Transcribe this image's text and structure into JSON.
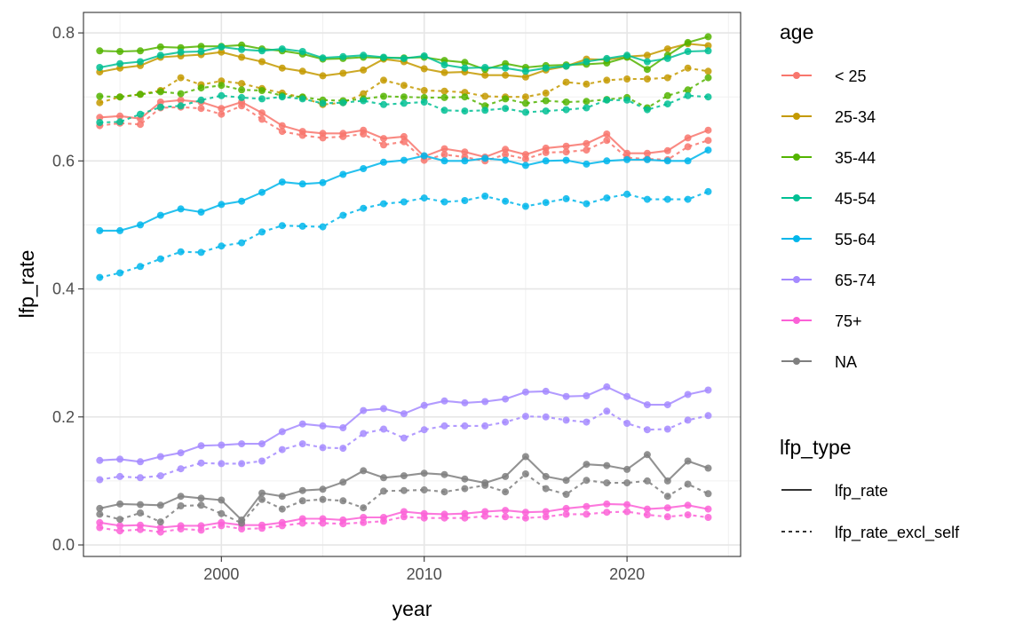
{
  "chart_data": {
    "type": "line",
    "xlabel": "year",
    "ylabel": "lfp_rate",
    "xlim": [
      1993.2,
      2025.6
    ],
    "ylim": [
      -0.018,
      0.832
    ],
    "x_ticks": [
      2000,
      2010,
      2020
    ],
    "x_tick_labels": [
      "2000",
      "2010",
      "2020"
    ],
    "y_ticks": [
      0.0,
      0.2,
      0.4,
      0.6,
      0.8
    ],
    "y_tick_labels": [
      "0.0",
      "0.2",
      "0.4",
      "0.6",
      "0.8"
    ],
    "grid": true,
    "legend_age": {
      "title": "age",
      "position": "right",
      "entries": [
        {
          "label": "< 25",
          "color": "#F8766D"
        },
        {
          "label": "25-34",
          "color": "#C49A00"
        },
        {
          "label": "35-44",
          "color": "#53B400"
        },
        {
          "label": "45-54",
          "color": "#00C094"
        },
        {
          "label": "55-64",
          "color": "#00B6EB"
        },
        {
          "label": "65-74",
          "color": "#A58AFF"
        },
        {
          "label": "75+",
          "color": "#FB61D7"
        },
        {
          "label": "NA",
          "color": "#7F7F7F"
        }
      ]
    },
    "legend_type": {
      "title": "lfp_type",
      "position": "right",
      "entries": [
        {
          "label": "lfp_rate",
          "linetype": "solid"
        },
        {
          "label": "lfp_rate_excl_self",
          "linetype": "dashed"
        }
      ]
    },
    "x": [
      1994,
      1995,
      1996,
      1997,
      1998,
      1999,
      2000,
      2001,
      2002,
      2003,
      2004,
      2005,
      2006,
      2007,
      2008,
      2009,
      2010,
      2011,
      2012,
      2013,
      2014,
      2015,
      2016,
      2017,
      2018,
      2019,
      2020,
      2021,
      2022,
      2023,
      2024
    ],
    "series": [
      {
        "name": "< 25",
        "lfp_type": "lfp_rate",
        "color": "#F8766D",
        "values": [
          0.668,
          0.67,
          0.666,
          0.692,
          0.695,
          0.692,
          0.682,
          0.692,
          0.675,
          0.655,
          0.646,
          0.643,
          0.643,
          0.648,
          0.635,
          0.638,
          0.607,
          0.619,
          0.614,
          0.606,
          0.618,
          0.61,
          0.62,
          0.623,
          0.627,
          0.642,
          0.612,
          0.612,
          0.616,
          0.636,
          0.648
        ]
      },
      {
        "name": "< 25",
        "lfp_type": "lfp_rate_excl_self",
        "color": "#F8766D",
        "values": [
          0.655,
          0.659,
          0.657,
          0.683,
          0.684,
          0.682,
          0.673,
          0.686,
          0.665,
          0.646,
          0.64,
          0.636,
          0.638,
          0.642,
          0.625,
          0.63,
          0.601,
          0.61,
          0.606,
          0.6,
          0.61,
          0.603,
          0.613,
          0.614,
          0.617,
          0.632,
          0.605,
          0.603,
          0.602,
          0.622,
          0.632
        ]
      },
      {
        "name": "25-34",
        "lfp_type": "lfp_rate",
        "color": "#C49A00",
        "values": [
          0.739,
          0.745,
          0.749,
          0.762,
          0.764,
          0.766,
          0.77,
          0.762,
          0.755,
          0.745,
          0.74,
          0.733,
          0.737,
          0.742,
          0.759,
          0.755,
          0.744,
          0.738,
          0.739,
          0.734,
          0.734,
          0.731,
          0.742,
          0.748,
          0.759,
          0.758,
          0.763,
          0.765,
          0.775,
          0.783,
          0.78
        ]
      },
      {
        "name": "25-34",
        "lfp_type": "lfp_rate_excl_self",
        "color": "#C49A00",
        "values": [
          0.691,
          0.7,
          0.704,
          0.71,
          0.73,
          0.719,
          0.725,
          0.721,
          0.713,
          0.706,
          0.699,
          0.688,
          0.691,
          0.705,
          0.726,
          0.718,
          0.71,
          0.709,
          0.707,
          0.701,
          0.7,
          0.7,
          0.706,
          0.723,
          0.72,
          0.726,
          0.728,
          0.728,
          0.73,
          0.745,
          0.74
        ]
      },
      {
        "name": "35-44",
        "lfp_type": "lfp_rate",
        "color": "#53B400",
        "values": [
          0.772,
          0.771,
          0.772,
          0.778,
          0.777,
          0.779,
          0.779,
          0.781,
          0.775,
          0.772,
          0.767,
          0.759,
          0.76,
          0.762,
          0.761,
          0.761,
          0.762,
          0.757,
          0.754,
          0.743,
          0.752,
          0.746,
          0.749,
          0.75,
          0.751,
          0.753,
          0.762,
          0.743,
          0.765,
          0.785,
          0.794
        ]
      },
      {
        "name": "35-44",
        "lfp_type": "lfp_rate_excl_self",
        "color": "#53B400",
        "values": [
          0.701,
          0.7,
          0.704,
          0.708,
          0.705,
          0.714,
          0.718,
          0.711,
          0.71,
          0.702,
          0.7,
          0.695,
          0.694,
          0.697,
          0.701,
          0.7,
          0.699,
          0.699,
          0.7,
          0.686,
          0.697,
          0.69,
          0.694,
          0.692,
          0.693,
          0.696,
          0.699,
          0.683,
          0.702,
          0.711,
          0.73
        ]
      },
      {
        "name": "45-54",
        "lfp_type": "lfp_rate",
        "color": "#00C094",
        "values": [
          0.746,
          0.752,
          0.755,
          0.765,
          0.77,
          0.771,
          0.778,
          0.774,
          0.772,
          0.775,
          0.771,
          0.761,
          0.763,
          0.765,
          0.762,
          0.76,
          0.764,
          0.75,
          0.745,
          0.746,
          0.745,
          0.74,
          0.745,
          0.748,
          0.755,
          0.76,
          0.765,
          0.755,
          0.76,
          0.771,
          0.772
        ]
      },
      {
        "name": "45-54",
        "lfp_type": "lfp_rate_excl_self",
        "color": "#00C094",
        "values": [
          0.66,
          0.661,
          0.673,
          0.684,
          0.686,
          0.695,
          0.702,
          0.699,
          0.697,
          0.7,
          0.697,
          0.69,
          0.691,
          0.694,
          0.688,
          0.69,
          0.692,
          0.679,
          0.678,
          0.679,
          0.682,
          0.676,
          0.678,
          0.68,
          0.683,
          0.695,
          0.695,
          0.68,
          0.689,
          0.702,
          0.7
        ]
      },
      {
        "name": "55-64",
        "lfp_type": "lfp_rate",
        "color": "#00B6EB",
        "values": [
          0.491,
          0.491,
          0.5,
          0.515,
          0.525,
          0.52,
          0.532,
          0.537,
          0.551,
          0.567,
          0.564,
          0.566,
          0.579,
          0.588,
          0.598,
          0.601,
          0.608,
          0.6,
          0.6,
          0.604,
          0.601,
          0.593,
          0.6,
          0.601,
          0.595,
          0.6,
          0.602,
          0.602,
          0.6,
          0.6,
          0.617
        ]
      },
      {
        "name": "55-64",
        "lfp_type": "lfp_rate_excl_self",
        "color": "#00B6EB",
        "values": [
          0.418,
          0.425,
          0.435,
          0.447,
          0.458,
          0.457,
          0.467,
          0.472,
          0.489,
          0.499,
          0.498,
          0.497,
          0.515,
          0.526,
          0.533,
          0.536,
          0.542,
          0.536,
          0.538,
          0.545,
          0.537,
          0.529,
          0.535,
          0.541,
          0.533,
          0.542,
          0.548,
          0.54,
          0.54,
          0.54,
          0.552
        ]
      },
      {
        "name": "65-74",
        "lfp_type": "lfp_rate",
        "color": "#A58AFF",
        "values": [
          0.132,
          0.134,
          0.13,
          0.138,
          0.144,
          0.155,
          0.156,
          0.158,
          0.158,
          0.177,
          0.189,
          0.186,
          0.183,
          0.21,
          0.213,
          0.205,
          0.218,
          0.225,
          0.222,
          0.224,
          0.228,
          0.239,
          0.24,
          0.232,
          0.233,
          0.247,
          0.232,
          0.219,
          0.219,
          0.235,
          0.242
        ]
      },
      {
        "name": "65-74",
        "lfp_type": "lfp_rate_excl_self",
        "color": "#A58AFF",
        "values": [
          0.102,
          0.107,
          0.105,
          0.108,
          0.119,
          0.128,
          0.127,
          0.127,
          0.131,
          0.149,
          0.158,
          0.152,
          0.151,
          0.174,
          0.181,
          0.167,
          0.18,
          0.186,
          0.186,
          0.186,
          0.192,
          0.201,
          0.2,
          0.195,
          0.192,
          0.209,
          0.19,
          0.18,
          0.181,
          0.195,
          0.202
        ]
      },
      {
        "name": "75+",
        "lfp_type": "lfp_rate",
        "color": "#FB61D7",
        "values": [
          0.035,
          0.03,
          0.031,
          0.027,
          0.03,
          0.03,
          0.035,
          0.031,
          0.031,
          0.035,
          0.041,
          0.041,
          0.039,
          0.043,
          0.043,
          0.052,
          0.049,
          0.048,
          0.049,
          0.052,
          0.054,
          0.051,
          0.052,
          0.057,
          0.06,
          0.064,
          0.063,
          0.056,
          0.058,
          0.062,
          0.056
        ]
      },
      {
        "name": "75+",
        "lfp_type": "lfp_rate_excl_self",
        "color": "#FB61D7",
        "values": [
          0.027,
          0.022,
          0.024,
          0.02,
          0.025,
          0.023,
          0.03,
          0.025,
          0.026,
          0.03,
          0.034,
          0.034,
          0.033,
          0.035,
          0.037,
          0.044,
          0.042,
          0.042,
          0.042,
          0.045,
          0.044,
          0.042,
          0.044,
          0.048,
          0.048,
          0.051,
          0.052,
          0.047,
          0.044,
          0.047,
          0.043
        ]
      },
      {
        "name": "NA",
        "lfp_type": "lfp_rate",
        "color": "#7F7F7F",
        "values": [
          0.057,
          0.064,
          0.063,
          0.062,
          0.076,
          0.073,
          0.07,
          0.039,
          0.081,
          0.076,
          0.085,
          0.087,
          0.098,
          0.116,
          0.105,
          0.108,
          0.112,
          0.11,
          0.103,
          0.097,
          0.107,
          0.138,
          0.107,
          0.101,
          0.126,
          0.124,
          0.118,
          0.141,
          0.1,
          0.131,
          0.12
        ]
      },
      {
        "name": "NA",
        "lfp_type": "lfp_rate_excl_self",
        "color": "#7F7F7F",
        "values": [
          0.048,
          0.04,
          0.05,
          0.036,
          0.061,
          0.062,
          0.049,
          0.034,
          0.071,
          0.056,
          0.069,
          0.071,
          0.069,
          0.058,
          0.084,
          0.085,
          0.086,
          0.083,
          0.088,
          0.093,
          0.083,
          0.111,
          0.088,
          0.079,
          0.101,
          0.097,
          0.097,
          0.1,
          0.076,
          0.095,
          0.08
        ]
      }
    ]
  }
}
